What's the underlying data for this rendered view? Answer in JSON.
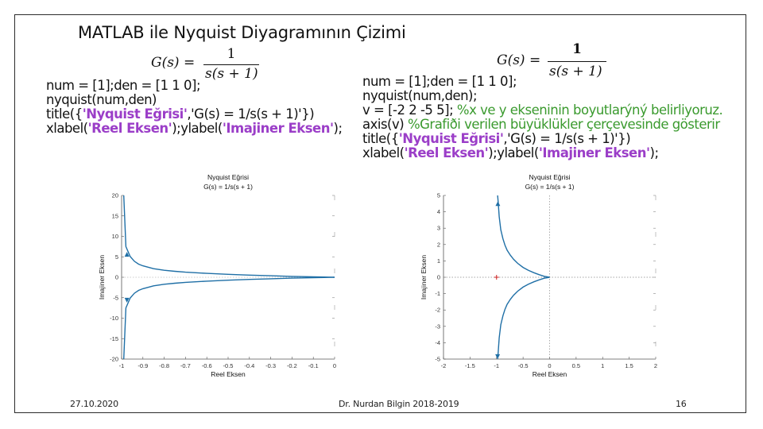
{
  "slide": {
    "title": "MATLAB ile Nyquist Diyagramının Çizimi",
    "footer_date": "27.10.2020",
    "footer_author": "Dr. Nurdan Bilgin 2018-2019",
    "page_number": "16"
  },
  "left": {
    "formula": {
      "lhs": "G(s)  =",
      "numerator": "1",
      "denominator": "s(s + 1)"
    },
    "code": [
      [
        {
          "t": "num = [1];den = [1 1 0];",
          "k": "n"
        }
      ],
      [
        {
          "t": "nyquist(num,den)",
          "k": "n"
        }
      ],
      [
        {
          "t": "title({",
          "k": "n"
        },
        {
          "t": "'Nyquist Eğrisi'",
          "k": "s"
        },
        {
          "t": ",'G(s) = 1/s(s + 1)'})",
          "k": "n"
        }
      ],
      [
        {
          "t": "xlabel(",
          "k": "n"
        },
        {
          "t": "'Reel Eksen'",
          "k": "s"
        },
        {
          "t": ");ylabel(",
          "k": "n"
        },
        {
          "t": "'Imajiner Eksen'",
          "k": "s"
        },
        {
          "t": ");",
          "k": "n"
        }
      ]
    ]
  },
  "right": {
    "formula": {
      "lhs": "G(s)  =",
      "numerator": "1",
      "denominator": "s(s + 1)"
    },
    "code": [
      [
        {
          "t": "num = [1];den = [1 1 0];",
          "k": "n"
        }
      ],
      [
        {
          "t": "nyquist(num,den);",
          "k": "n"
        }
      ],
      [
        {
          "t": "v = [-2 2 -5 5]; ",
          "k": "n"
        },
        {
          "t": "%x ve y ekseninin boyutlarýný belirliyoruz.",
          "k": "c"
        }
      ],
      [
        {
          "t": "axis(v) ",
          "k": "n"
        },
        {
          "t": "%Grafiði verilen büyüklükler çerçevesinde gösterir",
          "k": "c"
        }
      ],
      [
        {
          "t": "title({",
          "k": "n"
        },
        {
          "t": "'Nyquist Eğrisi'",
          "k": "s"
        },
        {
          "t": ",'G(s) = 1/s(s + 1)'})",
          "k": "n"
        }
      ],
      [
        {
          "t": "xlabel(",
          "k": "n"
        },
        {
          "t": "'Reel Eksen'",
          "k": "s"
        },
        {
          "t": ");ylabel(",
          "k": "n"
        },
        {
          "t": "'Imajiner Eksen'",
          "k": "s"
        },
        {
          "t": ");",
          "k": "n"
        }
      ]
    ]
  },
  "chart_data": [
    {
      "type": "line",
      "title": "Nyquist Eğrisi",
      "subtitle": "G(s) = 1/s(s + 1)",
      "xlabel": "Reel Eksen",
      "ylabel": "Imajiner Eksen",
      "xlim": [
        -1,
        0
      ],
      "ylim": [
        -20,
        20
      ],
      "xticks": [
        -1,
        -0.9,
        -0.8,
        -0.7,
        -0.6,
        -0.5,
        -0.4,
        -0.3,
        -0.2,
        -0.1,
        0
      ],
      "xtick_labels": [
        "-1",
        "-0.9",
        "-0.8",
        "-0.7",
        "-0.6",
        "-0.5",
        "-0.4",
        "-0.3",
        "-0.2",
        "-0.1",
        "0"
      ],
      "yticks": [
        20,
        15,
        10,
        5,
        0,
        -5,
        -10,
        -15,
        -20
      ],
      "ytick_labels": [
        "20",
        "15",
        "10",
        "5",
        "0",
        "-5",
        "-10",
        "-15",
        "-20"
      ],
      "series": [
        {
          "x": [
            -0.99,
            -0.98,
            -0.96,
            -0.94,
            -0.92,
            -0.9,
            -0.85,
            -0.8,
            -0.75,
            -0.7,
            -0.6,
            -0.5,
            -0.4,
            -0.3,
            -0.2,
            -0.1,
            -0.05,
            -0.01,
            0
          ],
          "y": [
            20,
            7.5,
            5.1,
            3.9,
            3.2,
            2.8,
            2.1,
            1.7,
            1.45,
            1.25,
            0.95,
            0.72,
            0.52,
            0.36,
            0.22,
            0.1,
            0.05,
            0.01,
            0
          ]
        },
        {
          "x": [
            -0.99,
            -0.98,
            -0.96,
            -0.94,
            -0.92,
            -0.9,
            -0.85,
            -0.8,
            -0.75,
            -0.7,
            -0.6,
            -0.5,
            -0.4,
            -0.3,
            -0.2,
            -0.1,
            -0.05,
            -0.01,
            0
          ],
          "y": [
            -20,
            -7.5,
            -5.1,
            -3.9,
            -3.2,
            -2.8,
            -2.1,
            -1.7,
            -1.45,
            -1.25,
            -0.95,
            -0.72,
            -0.52,
            -0.36,
            -0.22,
            -0.1,
            -0.05,
            -0.01,
            0
          ]
        }
      ],
      "arrows": [
        {
          "x": -0.975,
          "y": 5.6
        },
        {
          "x": -0.975,
          "y": -5.6
        }
      ],
      "grid": false
    },
    {
      "type": "line",
      "title": "Nyquist Eğrisi",
      "subtitle": "G(s) = 1/s(s + 1)",
      "xlabel": "Reel Eksen",
      "ylabel": "Imajiner Eksen",
      "xlim": [
        -2,
        2
      ],
      "ylim": [
        -5,
        5
      ],
      "xticks": [
        -2,
        -1.5,
        -1,
        -0.5,
        0,
        0.5,
        1,
        1.5,
        2
      ],
      "xtick_labels": [
        "-2",
        "-1.5",
        "-1",
        "-0.5",
        "0",
        "0.5",
        "1",
        "1.5",
        "2"
      ],
      "yticks": [
        5,
        4,
        3,
        2,
        1,
        0,
        -1,
        -2,
        -3,
        -4,
        -5
      ],
      "ytick_labels": [
        "5",
        "4",
        "3",
        "2",
        "1",
        "0",
        "-1",
        "-2",
        "-3",
        "-4",
        "-5"
      ],
      "series": [
        {
          "x": [
            -0.98,
            -0.97,
            -0.95,
            -0.92,
            -0.88,
            -0.84,
            -0.8,
            -0.74,
            -0.68,
            -0.6,
            -0.5,
            -0.4,
            -0.3,
            -0.2,
            -0.1,
            0
          ],
          "y": [
            5,
            4.6,
            3.7,
            2.9,
            2.35,
            1.95,
            1.65,
            1.35,
            1.1,
            0.85,
            0.6,
            0.42,
            0.28,
            0.16,
            0.06,
            0
          ]
        },
        {
          "x": [
            -0.98,
            -0.97,
            -0.95,
            -0.92,
            -0.88,
            -0.84,
            -0.8,
            -0.74,
            -0.68,
            -0.6,
            -0.5,
            -0.4,
            -0.3,
            -0.2,
            -0.1,
            0
          ],
          "y": [
            -5,
            -4.6,
            -3.7,
            -2.9,
            -2.35,
            -1.95,
            -1.65,
            -1.35,
            -1.1,
            -0.85,
            -0.6,
            -0.42,
            -0.28,
            -0.16,
            -0.06,
            0
          ]
        }
      ],
      "arrows": [
        {
          "x": -0.975,
          "y": 4.5
        },
        {
          "x": -0.98,
          "y": -4.85
        }
      ],
      "critical_point": {
        "x": -1,
        "y": 0,
        "color": "#cc2222"
      },
      "dotted_axes": true,
      "grid": false
    }
  ],
  "colors": {
    "curve": "#1f6fa6",
    "string": "#9b3ec8",
    "comment": "#3a9a2e",
    "text": "#111111"
  }
}
